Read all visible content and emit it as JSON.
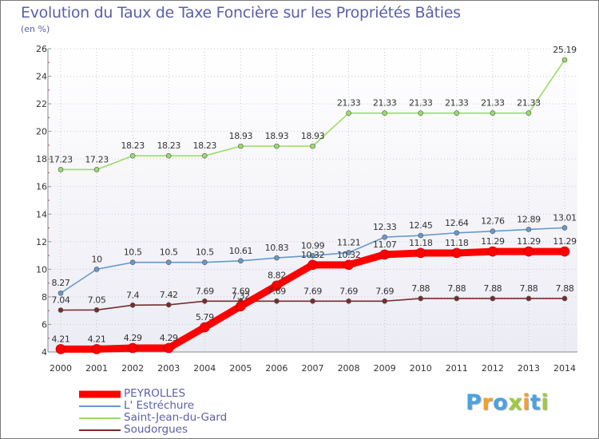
{
  "chart_data": {
    "type": "line",
    "title": "Evolution du Taux de Taxe Foncière sur les Propriétés Bâties",
    "ylabel": "(en %)",
    "xlabel": "",
    "ylim": [
      4,
      26
    ],
    "yticks": [
      "4",
      "6",
      "8",
      "10",
      "12",
      "14",
      "16",
      "18",
      "20",
      "22",
      "24",
      "26"
    ],
    "yticks_values": [
      4,
      6,
      8,
      10,
      12,
      14,
      16,
      18,
      20,
      22,
      24,
      26
    ],
    "categories": [
      "2000",
      "2001",
      "2002",
      "2003",
      "2004",
      "2005",
      "2006",
      "2007",
      "2008",
      "2009",
      "2010",
      "2011",
      "2012",
      "2013",
      "2014"
    ],
    "series": [
      {
        "name": "PEYROLLES",
        "color": "#ff0000",
        "values": [
          4.21,
          4.21,
          4.29,
          4.29,
          5.79,
          7.32,
          8.82,
          10.32,
          10.32,
          11.07,
          11.18,
          11.18,
          11.29,
          11.29,
          11.29
        ],
        "labels": [
          "4.21",
          "4.21",
          "4.29",
          "4.29",
          "5.79",
          "7.32",
          "8.82",
          "10.32",
          "10.32",
          "11.07",
          "11.18",
          "11.18",
          "11.29",
          "11.29",
          "11.29"
        ]
      },
      {
        "name": "L' Estréchure",
        "color": "#6699cc",
        "values": [
          8.27,
          10,
          10.5,
          10.5,
          10.5,
          10.61,
          10.83,
          10.99,
          11.21,
          12.33,
          12.45,
          12.64,
          12.76,
          12.89,
          13.01
        ],
        "labels": [
          "8.27",
          "10",
          "10.5",
          "10.5",
          "10.5",
          "10.61",
          "10.83",
          "10.99",
          "11.21",
          "12.33",
          "12.45",
          "12.64",
          "12.76",
          "12.89",
          "13.01"
        ]
      },
      {
        "name": "Saint-Jean-du-Gard",
        "color": "#99dd66",
        "values": [
          17.23,
          17.23,
          18.23,
          18.23,
          18.23,
          18.93,
          18.93,
          18.93,
          21.33,
          21.33,
          21.33,
          21.33,
          21.33,
          21.33,
          25.19
        ],
        "labels": [
          "17.23",
          "17.23",
          "18.23",
          "18.23",
          "18.23",
          "18.93",
          "18.93",
          "18.93",
          "21.33",
          "21.33",
          "21.33",
          "21.33",
          "21.33",
          "21.33",
          "25.19"
        ]
      },
      {
        "name": "Soudorgues",
        "color": "#7a2a2a",
        "values": [
          7.04,
          7.05,
          7.4,
          7.42,
          7.69,
          7.69,
          7.69,
          7.69,
          7.69,
          7.69,
          7.88,
          7.88,
          7.88,
          7.88,
          7.88
        ],
        "labels": [
          "7.04",
          "7.05",
          "7.4",
          "7.42",
          "7.69",
          "7.69",
          "7.69",
          "7.69",
          "7.69",
          "7.69",
          "7.88",
          "7.88",
          "7.88",
          "7.88",
          "7.88"
        ]
      }
    ],
    "grid": true,
    "legend": "bottom-left"
  },
  "brand": {
    "letters": [
      "P",
      "r",
      "o",
      "x",
      "i",
      "t",
      "i"
    ],
    "colors": [
      "#4aa3df",
      "#f0a030",
      "#4aa3df",
      "#9ccc3a",
      "#f0a030",
      "#4aa3df",
      "#9ccc3a"
    ]
  }
}
